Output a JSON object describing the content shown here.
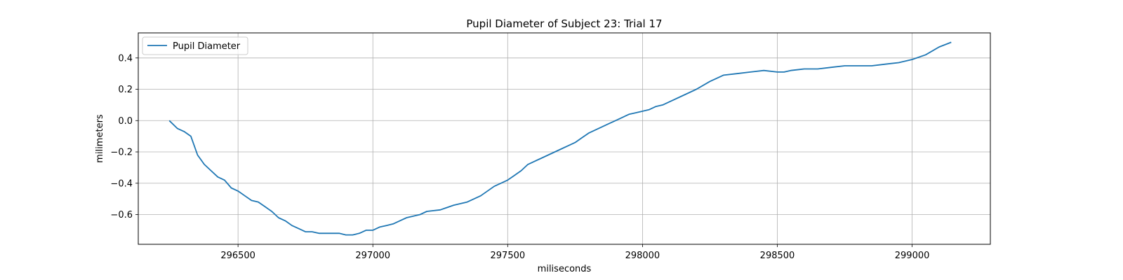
{
  "chart_data": {
    "type": "line",
    "title": "Pupil Diameter of Subject 23: Trial 17",
    "xlabel": "miliseconds",
    "ylabel": "milimeters",
    "xlim": [
      296130,
      299290
    ],
    "ylim": [
      -0.79,
      0.56
    ],
    "xticks": [
      296500,
      297000,
      297500,
      298000,
      298500,
      299000
    ],
    "xtick_labels": [
      "296500",
      "297000",
      "297500",
      "298000",
      "298500",
      "299000"
    ],
    "yticks": [
      -0.6,
      -0.4,
      -0.2,
      0.0,
      0.2,
      0.4
    ],
    "ytick_labels": [
      "−0.6",
      "−0.4",
      "−0.2",
      "0.0",
      "0.2",
      "0.4"
    ],
    "grid": true,
    "legend_placement": "upper left",
    "line_color": "#1f77b4",
    "series": [
      {
        "name": "Pupil Diameter",
        "x": [
          296245,
          296275,
          296300,
          296325,
          296350,
          296375,
          296400,
          296425,
          296450,
          296475,
          296500,
          296525,
          296550,
          296575,
          296600,
          296625,
          296650,
          296675,
          296700,
          296725,
          296750,
          296775,
          296800,
          296825,
          296850,
          296875,
          296900,
          296925,
          296950,
          296975,
          297000,
          297025,
          297050,
          297075,
          297100,
          297125,
          297150,
          297175,
          297200,
          297250,
          297300,
          297350,
          297400,
          297450,
          297500,
          297525,
          297550,
          297575,
          297600,
          297625,
          297650,
          297675,
          297700,
          297725,
          297750,
          297775,
          297800,
          297825,
          297850,
          297875,
          297900,
          297925,
          297950,
          297975,
          298000,
          298025,
          298050,
          298075,
          298100,
          298150,
          298200,
          298250,
          298300,
          298350,
          298400,
          298450,
          298500,
          298525,
          298550,
          298600,
          298650,
          298700,
          298750,
          298800,
          298850,
          298900,
          298950,
          299000,
          299050,
          299100,
          299145
        ],
        "y": [
          0.0,
          -0.05,
          -0.07,
          -0.1,
          -0.22,
          -0.28,
          -0.32,
          -0.36,
          -0.38,
          -0.43,
          -0.45,
          -0.48,
          -0.51,
          -0.52,
          -0.55,
          -0.58,
          -0.62,
          -0.64,
          -0.67,
          -0.69,
          -0.71,
          -0.71,
          -0.72,
          -0.72,
          -0.72,
          -0.72,
          -0.73,
          -0.73,
          -0.72,
          -0.7,
          -0.7,
          -0.68,
          -0.67,
          -0.66,
          -0.64,
          -0.62,
          -0.61,
          -0.6,
          -0.58,
          -0.57,
          -0.54,
          -0.52,
          -0.48,
          -0.42,
          -0.38,
          -0.35,
          -0.32,
          -0.28,
          -0.26,
          -0.24,
          -0.22,
          -0.2,
          -0.18,
          -0.16,
          -0.14,
          -0.11,
          -0.08,
          -0.06,
          -0.04,
          -0.02,
          0.0,
          0.02,
          0.04,
          0.05,
          0.06,
          0.07,
          0.09,
          0.1,
          0.12,
          0.16,
          0.2,
          0.25,
          0.29,
          0.3,
          0.31,
          0.32,
          0.31,
          0.31,
          0.32,
          0.33,
          0.33,
          0.34,
          0.35,
          0.35,
          0.35,
          0.36,
          0.37,
          0.39,
          0.42,
          0.47,
          0.5
        ]
      }
    ]
  }
}
